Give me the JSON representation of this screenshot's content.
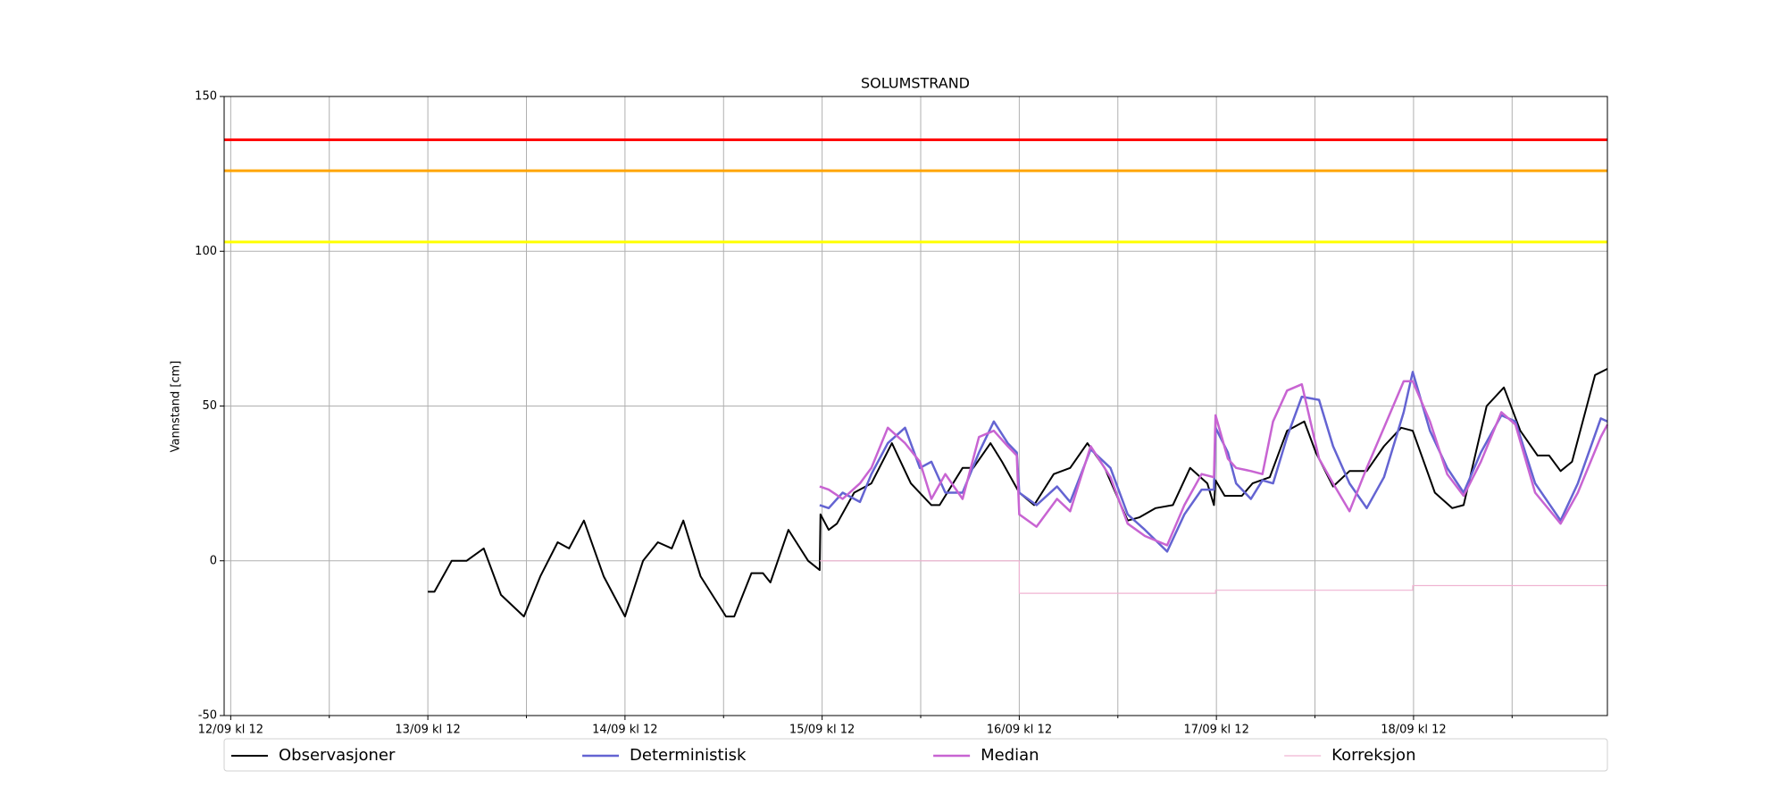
{
  "chart_data": {
    "type": "line",
    "title": "SOLUMSTRAND",
    "ylabel": "Vannstand [cm]",
    "xlim": [
      11.2,
      179.6
    ],
    "ylim": [
      -50,
      150
    ],
    "xticks": [
      {
        "value": 12,
        "label": "12/09 kl 12"
      },
      {
        "value": 36,
        "label": "13/09 kl 12"
      },
      {
        "value": 60,
        "label": "14/09 kl 12"
      },
      {
        "value": 84,
        "label": "15/09 kl 12"
      },
      {
        "value": 108,
        "label": "16/09 kl 12"
      },
      {
        "value": 132,
        "label": "17/09 kl 12"
      },
      {
        "value": 156,
        "label": "18/09 kl 12"
      }
    ],
    "xticks_minor": [
      24,
      48,
      72,
      96,
      120,
      144,
      168
    ],
    "yticks": [
      -50,
      0,
      50,
      100,
      150
    ],
    "grid": true,
    "legend": "below",
    "thresholds": [
      {
        "value": 136,
        "color": "#ff0000"
      },
      {
        "value": 126,
        "color": "#ffa500"
      },
      {
        "value": 103,
        "color": "#ffff00"
      }
    ],
    "series": [
      {
        "name": "Observasjoner",
        "color": "#000000",
        "width": 2,
        "x": [
          36.0,
          36.8,
          38.9,
          40.7,
          42.8,
          44.9,
          47.7,
          49.7,
          51.8,
          53.2,
          55.0,
          57.4,
          60.0,
          62.2,
          64.0,
          65.7,
          67.1,
          69.2,
          72.3,
          73.3,
          75.4,
          76.8,
          77.7,
          79.9,
          82.3,
          83.7,
          83.8,
          84.8,
          85.8,
          87.9,
          90.0,
          92.5,
          94.8,
          97.3,
          98.3,
          101.1,
          102.4,
          104.5,
          105.9,
          108.0,
          109.8,
          112.2,
          114.2,
          116.3,
          118.4,
          121.2,
          122.6,
          124.6,
          126.7,
          128.8,
          130.9,
          131.7,
          131.9,
          133.0,
          135.1,
          136.4,
          138.5,
          140.6,
          142.7,
          144.1,
          146.2,
          148.2,
          150.3,
          152.4,
          154.5,
          155.9,
          158.6,
          160.7,
          162.1,
          164.9,
          167.0,
          169.0,
          171.1,
          172.5,
          173.9,
          175.3,
          178.1,
          179.6
        ],
        "values": [
          -10,
          -10,
          0,
          0,
          4,
          -11,
          -18,
          -5,
          6,
          4,
          13,
          -5,
          -18,
          0,
          6,
          4,
          13,
          -5,
          -18,
          -18,
          -4,
          -4,
          -7,
          10,
          0,
          -3,
          15,
          10,
          12,
          22,
          25,
          38,
          25,
          18,
          18,
          30,
          30,
          38,
          32,
          22,
          18,
          28,
          30,
          38,
          30,
          13,
          14,
          17,
          18,
          30,
          25,
          18,
          26,
          21,
          21,
          25,
          27,
          42,
          45,
          35,
          24,
          29,
          29,
          37,
          43,
          42,
          22,
          17,
          18,
          50,
          56,
          42,
          34,
          34,
          29,
          32,
          60,
          62
        ]
      },
      {
        "name": "Deterministisk",
        "color": "#6464d2",
        "width": 2.5,
        "x": [
          83.7,
          84.8,
          86.5,
          88.6,
          90.0,
          92.0,
          94.1,
          95.9,
          97.3,
          99.0,
          101.1,
          103.1,
          104.9,
          106.6,
          107.7,
          108.0,
          110.1,
          112.6,
          114.2,
          116.7,
          119.1,
          121.2,
          123.3,
          126.0,
          128.1,
          130.2,
          131.7,
          131.9,
          133.4,
          134.4,
          136.2,
          137.6,
          138.9,
          140.6,
          142.4,
          144.5,
          146.2,
          148.2,
          150.3,
          152.4,
          154.8,
          155.9,
          158.0,
          160.1,
          162.1,
          164.2,
          166.7,
          168.4,
          170.8,
          173.9,
          176.0,
          178.8,
          179.6
        ],
        "values": [
          18,
          17,
          22,
          19,
          28,
          38,
          43,
          30,
          32,
          22,
          22,
          35,
          45,
          38,
          35,
          22,
          18,
          24,
          19,
          36,
          30,
          15,
          10,
          3,
          15,
          23,
          23,
          43,
          35,
          25,
          20,
          26,
          25,
          40,
          53,
          52,
          37,
          25,
          17,
          27,
          48,
          61,
          42,
          30,
          22,
          35,
          47,
          45,
          25,
          13,
          25,
          46,
          45
        ]
      },
      {
        "name": "Median",
        "color": "#c864d2",
        "width": 2.5,
        "x": [
          83.7,
          84.8,
          86.5,
          88.6,
          90.0,
          92.0,
          94.1,
          95.9,
          97.3,
          99.0,
          101.1,
          103.1,
          104.9,
          106.6,
          107.7,
          108.0,
          110.1,
          112.6,
          114.2,
          116.7,
          119.1,
          121.2,
          123.3,
          126.0,
          128.1,
          130.2,
          131.7,
          131.9,
          133.4,
          134.4,
          136.2,
          137.6,
          138.9,
          140.6,
          142.4,
          144.5,
          146.2,
          148.2,
          150.3,
          152.4,
          154.8,
          155.9,
          158.0,
          160.1,
          162.1,
          164.2,
          166.7,
          168.4,
          170.8,
          173.9,
          176.0,
          178.8,
          179.6
        ],
        "values": [
          24,
          23,
          20,
          25,
          30,
          43,
          38,
          32,
          20,
          28,
          20,
          40,
          42,
          37,
          34,
          15,
          11,
          20,
          16,
          37,
          27,
          12,
          8,
          5,
          18,
          28,
          27,
          47,
          33,
          30,
          29,
          28,
          45,
          55,
          57,
          33,
          25,
          16,
          30,
          43,
          58,
          58,
          45,
          28,
          21,
          32,
          48,
          44,
          22,
          12,
          22,
          40,
          44
        ]
      },
      {
        "name": "Korreksjon",
        "color": "#f0b4d2",
        "width": 1.2,
        "x": [
          83.7,
          108,
          108,
          131.9,
          131.9,
          155.9,
          155.9,
          179.6
        ],
        "values": [
          0,
          0,
          -10.5,
          -10.5,
          -9.5,
          -9.5,
          -8,
          -8
        ]
      }
    ]
  }
}
